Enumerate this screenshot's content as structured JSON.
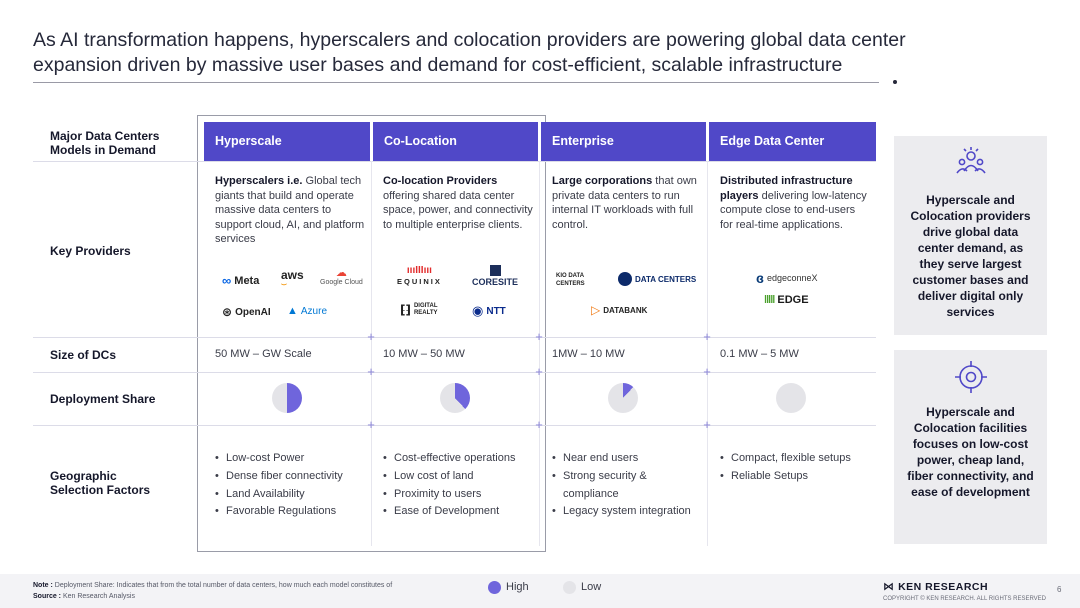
{
  "title": "As AI transformation happens, hyperscalers and colocation providers are powering global data center expansion driven by massive user bases and demand for cost-efficient, scalable infrastructure",
  "row_labels": {
    "models": "Major Data Centers Models in Demand",
    "providers": "Key Providers",
    "size": "Size of DCs",
    "share": "Deployment Share",
    "factors": "Geographic Selection Factors"
  },
  "columns": [
    {
      "name": "Hyperscale",
      "desc_bold": "Hyperscalers i.e.",
      "desc_rest": " Global tech giants that build and operate massive data centers to support cloud, AI, and platform services",
      "logos": [
        "Meta",
        "aws",
        "Google Cloud",
        "OpenAI",
        "Azure"
      ],
      "size": "50 MW – GW Scale",
      "share": 0.5,
      "factors": [
        "Low-cost Power",
        "Dense fiber connectivity",
        "Land Availability",
        "Favorable Regulations"
      ]
    },
    {
      "name": "Co-Location",
      "desc_bold": "Co-location Providers",
      "desc_rest": " offering shared data center space, power, and connectivity to multiple enterprise clients.",
      "logos": [
        "EQUINIX",
        "CORESITE",
        "DIGITAL REALTY",
        "NTT"
      ],
      "size": "10 MW – 50 MW",
      "share": 0.38,
      "factors": [
        "Cost-effective operations",
        "Low cost of land",
        "Proximity to users",
        "Ease of Development"
      ]
    },
    {
      "name": "Enterprise",
      "desc_bold": "Large corporations",
      "desc_rest": " that own private data centers to run internal IT workloads with full control.",
      "logos": [
        "KIO DATA CENTERS",
        "DATA CENTERS",
        "DATABANK"
      ],
      "size": "1MW – 10 MW",
      "share": 0.12,
      "factors": [
        "Near end users",
        "Strong security & compliance",
        "Legacy system integration"
      ]
    },
    {
      "name": "Edge Data Center",
      "desc_bold": "Distributed infrastructure players",
      "desc_rest": " delivering low-latency compute close to end-users for real-time applications.",
      "logos": [
        "edgeconneX",
        "EDGE"
      ],
      "size": "0.1 MW – 5 MW",
      "share": 0,
      "factors": [
        "Compact, flexible setups",
        "Reliable Setups"
      ]
    }
  ],
  "side_cards": [
    {
      "icon": "users-group-icon",
      "text": "Hyperscale and Colocation providers drive global data center demand, as they serve largest customer bases and deliver digital only services"
    },
    {
      "icon": "target-icon",
      "text": "Hyperscale and Colocation facilities focuses on low-cost power, cheap land, fiber connectivity, and ease of development"
    }
  ],
  "legend": {
    "high": "High",
    "low": "Low"
  },
  "colors": {
    "accent": "#5048c8",
    "pie_high": "#6f65dc",
    "pie_low": "#e4e4e8"
  },
  "footer": {
    "note_label": "Note :",
    "note": " Deployment Share: Indicates that from the total number of data centers, how much each model constitutes of",
    "source_label": "Source :",
    "source": " Ken Research Analysis",
    "brand": "KEN RESEARCH",
    "copyright": "COPYRIGHT © KEN RESEARCH. ALL RIGHTS RESERVED",
    "page": "6"
  }
}
